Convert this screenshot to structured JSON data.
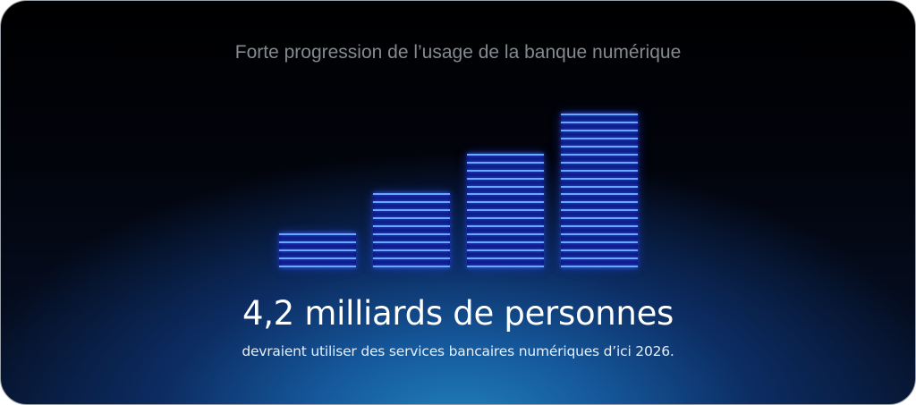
{
  "title": "Forte progression de l’usage de la banque numérique",
  "bars": [
    {
      "segments": 5
    },
    {
      "segments": 10
    },
    {
      "segments": 15
    },
    {
      "segments": 20
    }
  ],
  "headline": "4,2 milliards de personnes",
  "subtitle": "devraient utiliser des services bancaires numériques d’ici 2026.",
  "colors": {
    "bar_line": "#6aa8ff",
    "bar_fill": "#0a1680",
    "glow": "#1f7fb8",
    "background": "#000000"
  }
}
